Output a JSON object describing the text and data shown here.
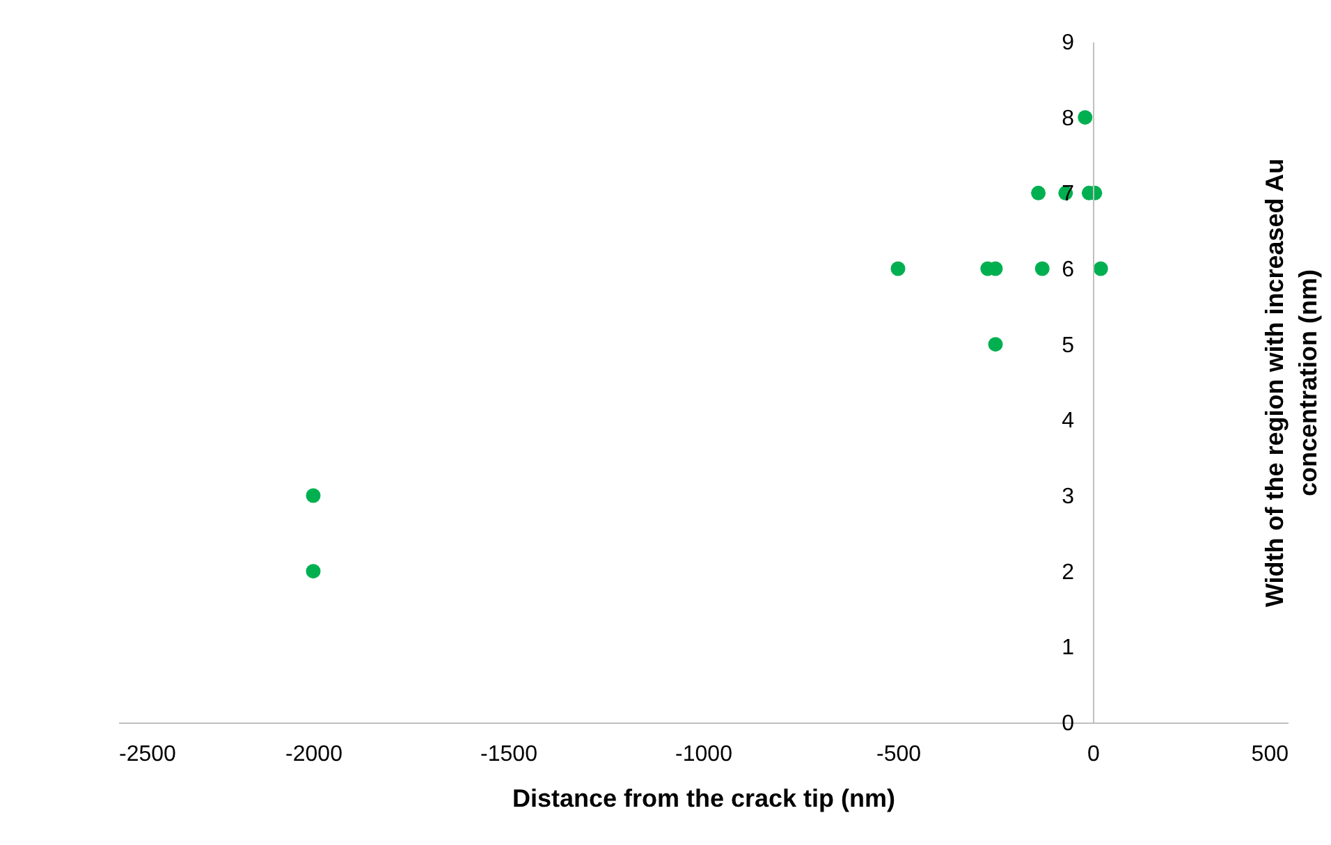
{
  "chart_data": {
    "type": "scatter",
    "xlabel": "Distance from the crack tip (nm)",
    "ylabel": "Width of the region with increased Au concentration (nm)",
    "x": [
      -2000,
      -2000,
      -500,
      -270,
      -250,
      -250,
      -130,
      20,
      -140,
      -70,
      -10,
      5,
      -20
    ],
    "values": [
      3,
      2,
      6,
      6,
      6,
      5,
      6,
      6,
      7,
      7,
      7,
      7,
      8
    ],
    "color": "#00b050",
    "marker": "circle",
    "xlim": [
      -2500,
      500
    ],
    "xticks": [
      -2500,
      -2000,
      -1500,
      -1000,
      -500,
      0,
      500
    ],
    "ylim": [
      0,
      9
    ],
    "yticks": [
      0,
      1,
      2,
      3,
      4,
      5,
      6,
      7,
      8,
      9
    ],
    "grid": false
  }
}
